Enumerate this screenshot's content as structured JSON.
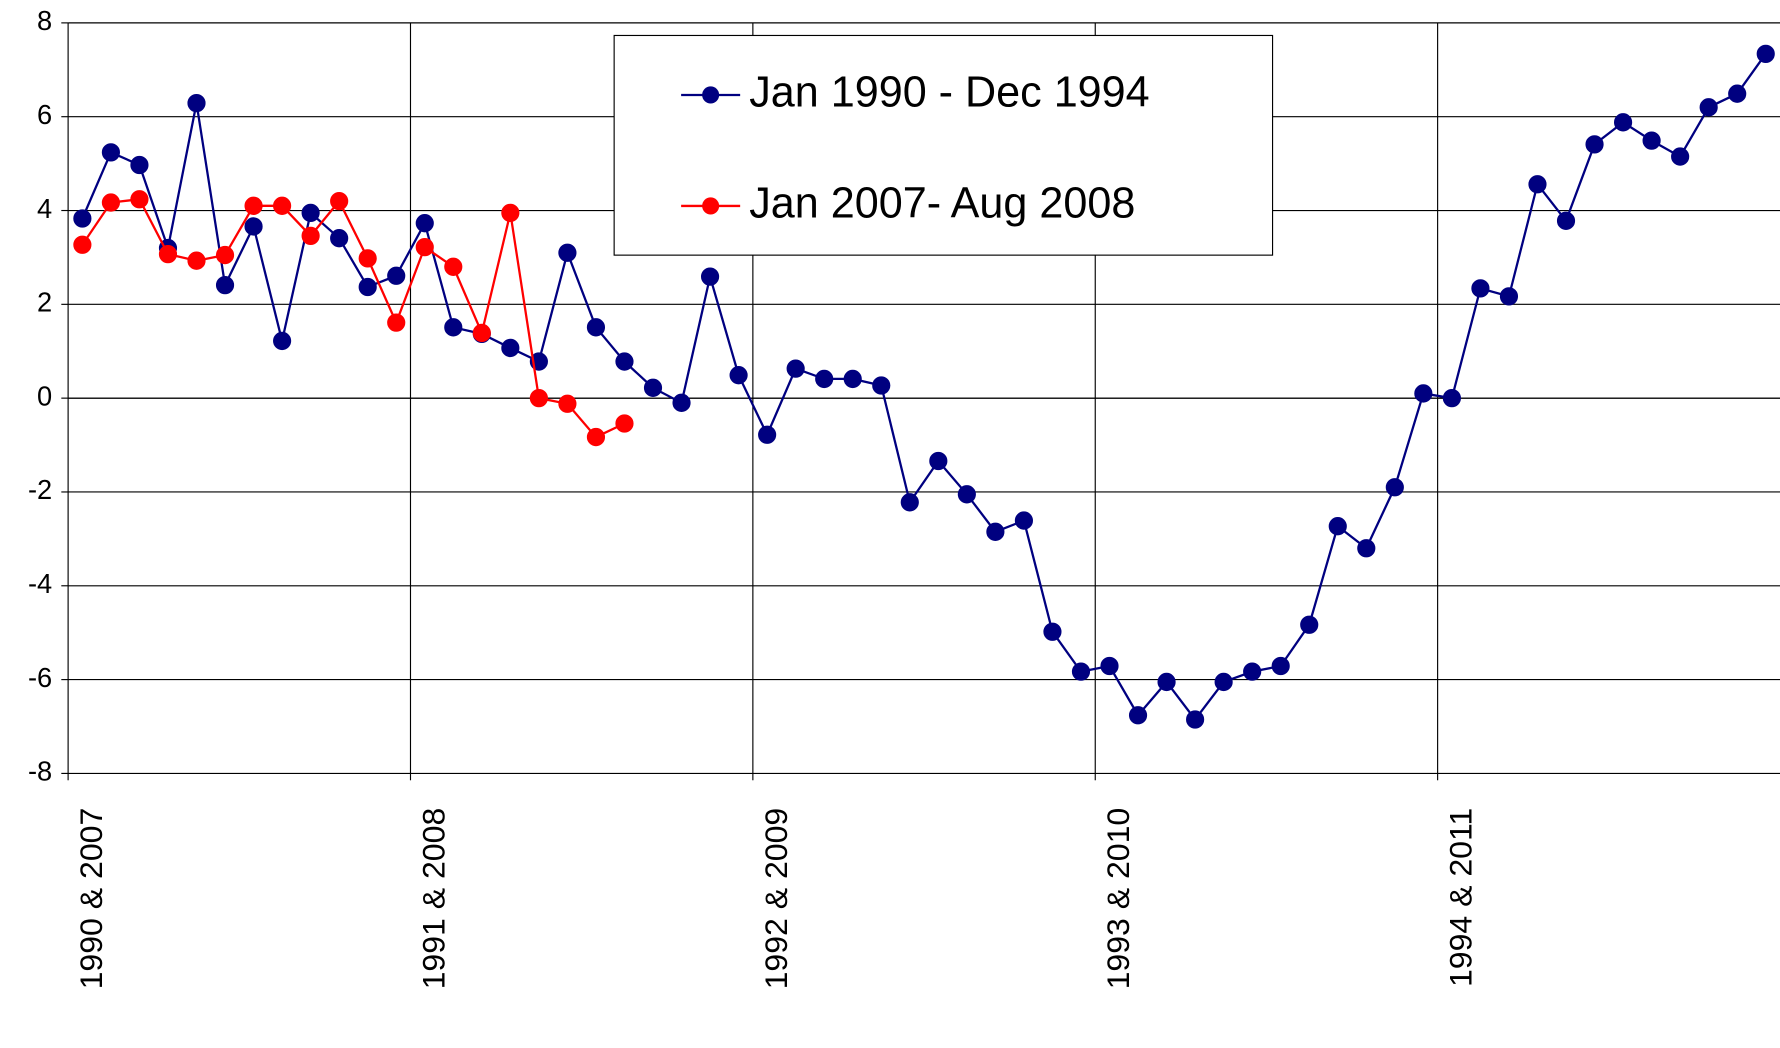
{
  "chart_data": {
    "type": "line",
    "categories": [
      "1990 & 2007",
      null,
      null,
      null,
      null,
      null,
      null,
      null,
      null,
      null,
      null,
      null,
      "1991 & 2008",
      null,
      null,
      null,
      null,
      null,
      null,
      null,
      null,
      null,
      null,
      null,
      "1992 & 2009",
      null,
      null,
      null,
      null,
      null,
      null,
      null,
      null,
      null,
      null,
      null,
      "1993 & 2010",
      null,
      null,
      null,
      null,
      null,
      null,
      null,
      null,
      null,
      null,
      null,
      "1994 & 2011",
      null,
      null,
      null,
      null,
      null,
      null,
      null,
      null,
      null,
      null,
      null
    ],
    "series": [
      {
        "name": "Jan 1990 - Dec 1994",
        "color": "#000080",
        "values": [
          3.83,
          5.24,
          4.97,
          3.2,
          6.29,
          2.41,
          3.66,
          1.22,
          3.95,
          3.41,
          2.37,
          2.61,
          3.73,
          1.51,
          1.37,
          1.07,
          0.78,
          3.1,
          1.51,
          0.78,
          0.22,
          -0.1,
          2.59,
          0.49,
          -0.78,
          0.63,
          0.41,
          0.41,
          0.27,
          -2.22,
          -1.34,
          -2.05,
          -2.85,
          -2.61,
          -4.98,
          -5.83,
          -5.71,
          -6.76,
          -6.05,
          -6.85,
          -6.05,
          -5.83,
          -5.71,
          -4.83,
          -2.73,
          -3.2,
          -1.9,
          0.1,
          0,
          2.34,
          2.17,
          4.56,
          3.78,
          5.41,
          5.88,
          5.49,
          5.15,
          6.2,
          6.49,
          7.34
        ]
      },
      {
        "name": "Jan 2007- Aug 2008",
        "color": "#ff0000",
        "values": [
          3.27,
          4.17,
          4.24,
          3.07,
          2.93,
          3.05,
          4.1,
          4.1,
          3.46,
          4.2,
          2.98,
          1.61,
          3.22,
          2.8,
          1.39,
          3.95,
          0,
          -0.12,
          -0.83,
          -0.54,
          null,
          null,
          null,
          null,
          null,
          null,
          null,
          null,
          null,
          null,
          null,
          null,
          null,
          null,
          null,
          null,
          null,
          null,
          null,
          null,
          null,
          null,
          null,
          null,
          null,
          null,
          null,
          null,
          null,
          null,
          null,
          null,
          null,
          null,
          null,
          null,
          null,
          null,
          null,
          null
        ]
      }
    ],
    "ylim": [
      -8,
      8
    ],
    "yticks": [
      -8,
      -6,
      -4,
      -2,
      0,
      2,
      4,
      6,
      8
    ],
    "grid": true
  }
}
